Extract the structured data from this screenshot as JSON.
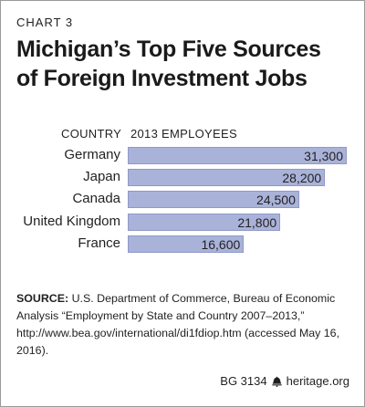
{
  "header": {
    "chart_label": "CHART 3",
    "title_line1": "Michigan’s Top Five Sources",
    "title_line2": "of Foreign Investment Jobs"
  },
  "columns": {
    "country": "COUNTRY",
    "employees": "2013 EMPLOYEES"
  },
  "chart_data": {
    "type": "bar",
    "orientation": "horizontal",
    "title": "Michigan’s Top Five Sources of Foreign Investment Jobs",
    "xlabel": "2013 EMPLOYEES",
    "ylabel": "COUNTRY",
    "categories": [
      "Germany",
      "Japan",
      "Canada",
      "United Kingdom",
      "France"
    ],
    "values": [
      31300,
      28200,
      24500,
      21800,
      16600
    ],
    "value_labels": [
      "31,300",
      "28,200",
      "24,500",
      "21,800",
      "16,600"
    ],
    "xlim": [
      0,
      31300
    ],
    "bar_color": "#a9b3d9",
    "grid": false
  },
  "source": {
    "label": "SOURCE:",
    "text": "U.S. Department of Commerce, Bureau of Economic Analysis “Employment by State and Country 2007–2013,” http://www.bea.gov/international/di1fdiop.htm (accessed May 16, 2016)."
  },
  "footer": {
    "id": "BG 3134",
    "site": "heritage.org"
  }
}
